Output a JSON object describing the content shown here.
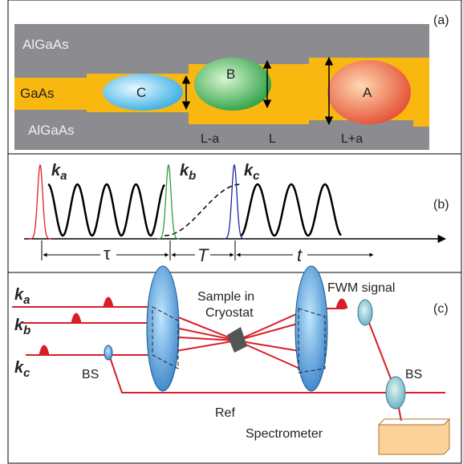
{
  "panel_a": {
    "label": "(a)",
    "layers": [
      "AlGaAs",
      "GaAs",
      "AlGaAs"
    ],
    "dots": [
      "C",
      "B",
      "A"
    ],
    "widths": [
      "L-a",
      "L",
      "L+a"
    ]
  },
  "panel_b": {
    "label": "(b)",
    "pulses": [
      {
        "symbol": "k",
        "sub": "a"
      },
      {
        "symbol": "k",
        "sub": "b"
      },
      {
        "symbol": "k",
        "sub": "c"
      }
    ],
    "delays": [
      "τ",
      "T",
      "t"
    ]
  },
  "panel_c": {
    "label": "(c)",
    "beams": [
      {
        "symbol": "k",
        "sub": "a"
      },
      {
        "symbol": "k",
        "sub": "b"
      },
      {
        "symbol": "k",
        "sub": "c"
      }
    ],
    "sample": [
      "Sample in",
      "Cryostat"
    ],
    "signal": "FWM signal",
    "splitters": [
      "BS",
      "BS"
    ],
    "reference": "Ref",
    "detector": "Spectrometer"
  }
}
